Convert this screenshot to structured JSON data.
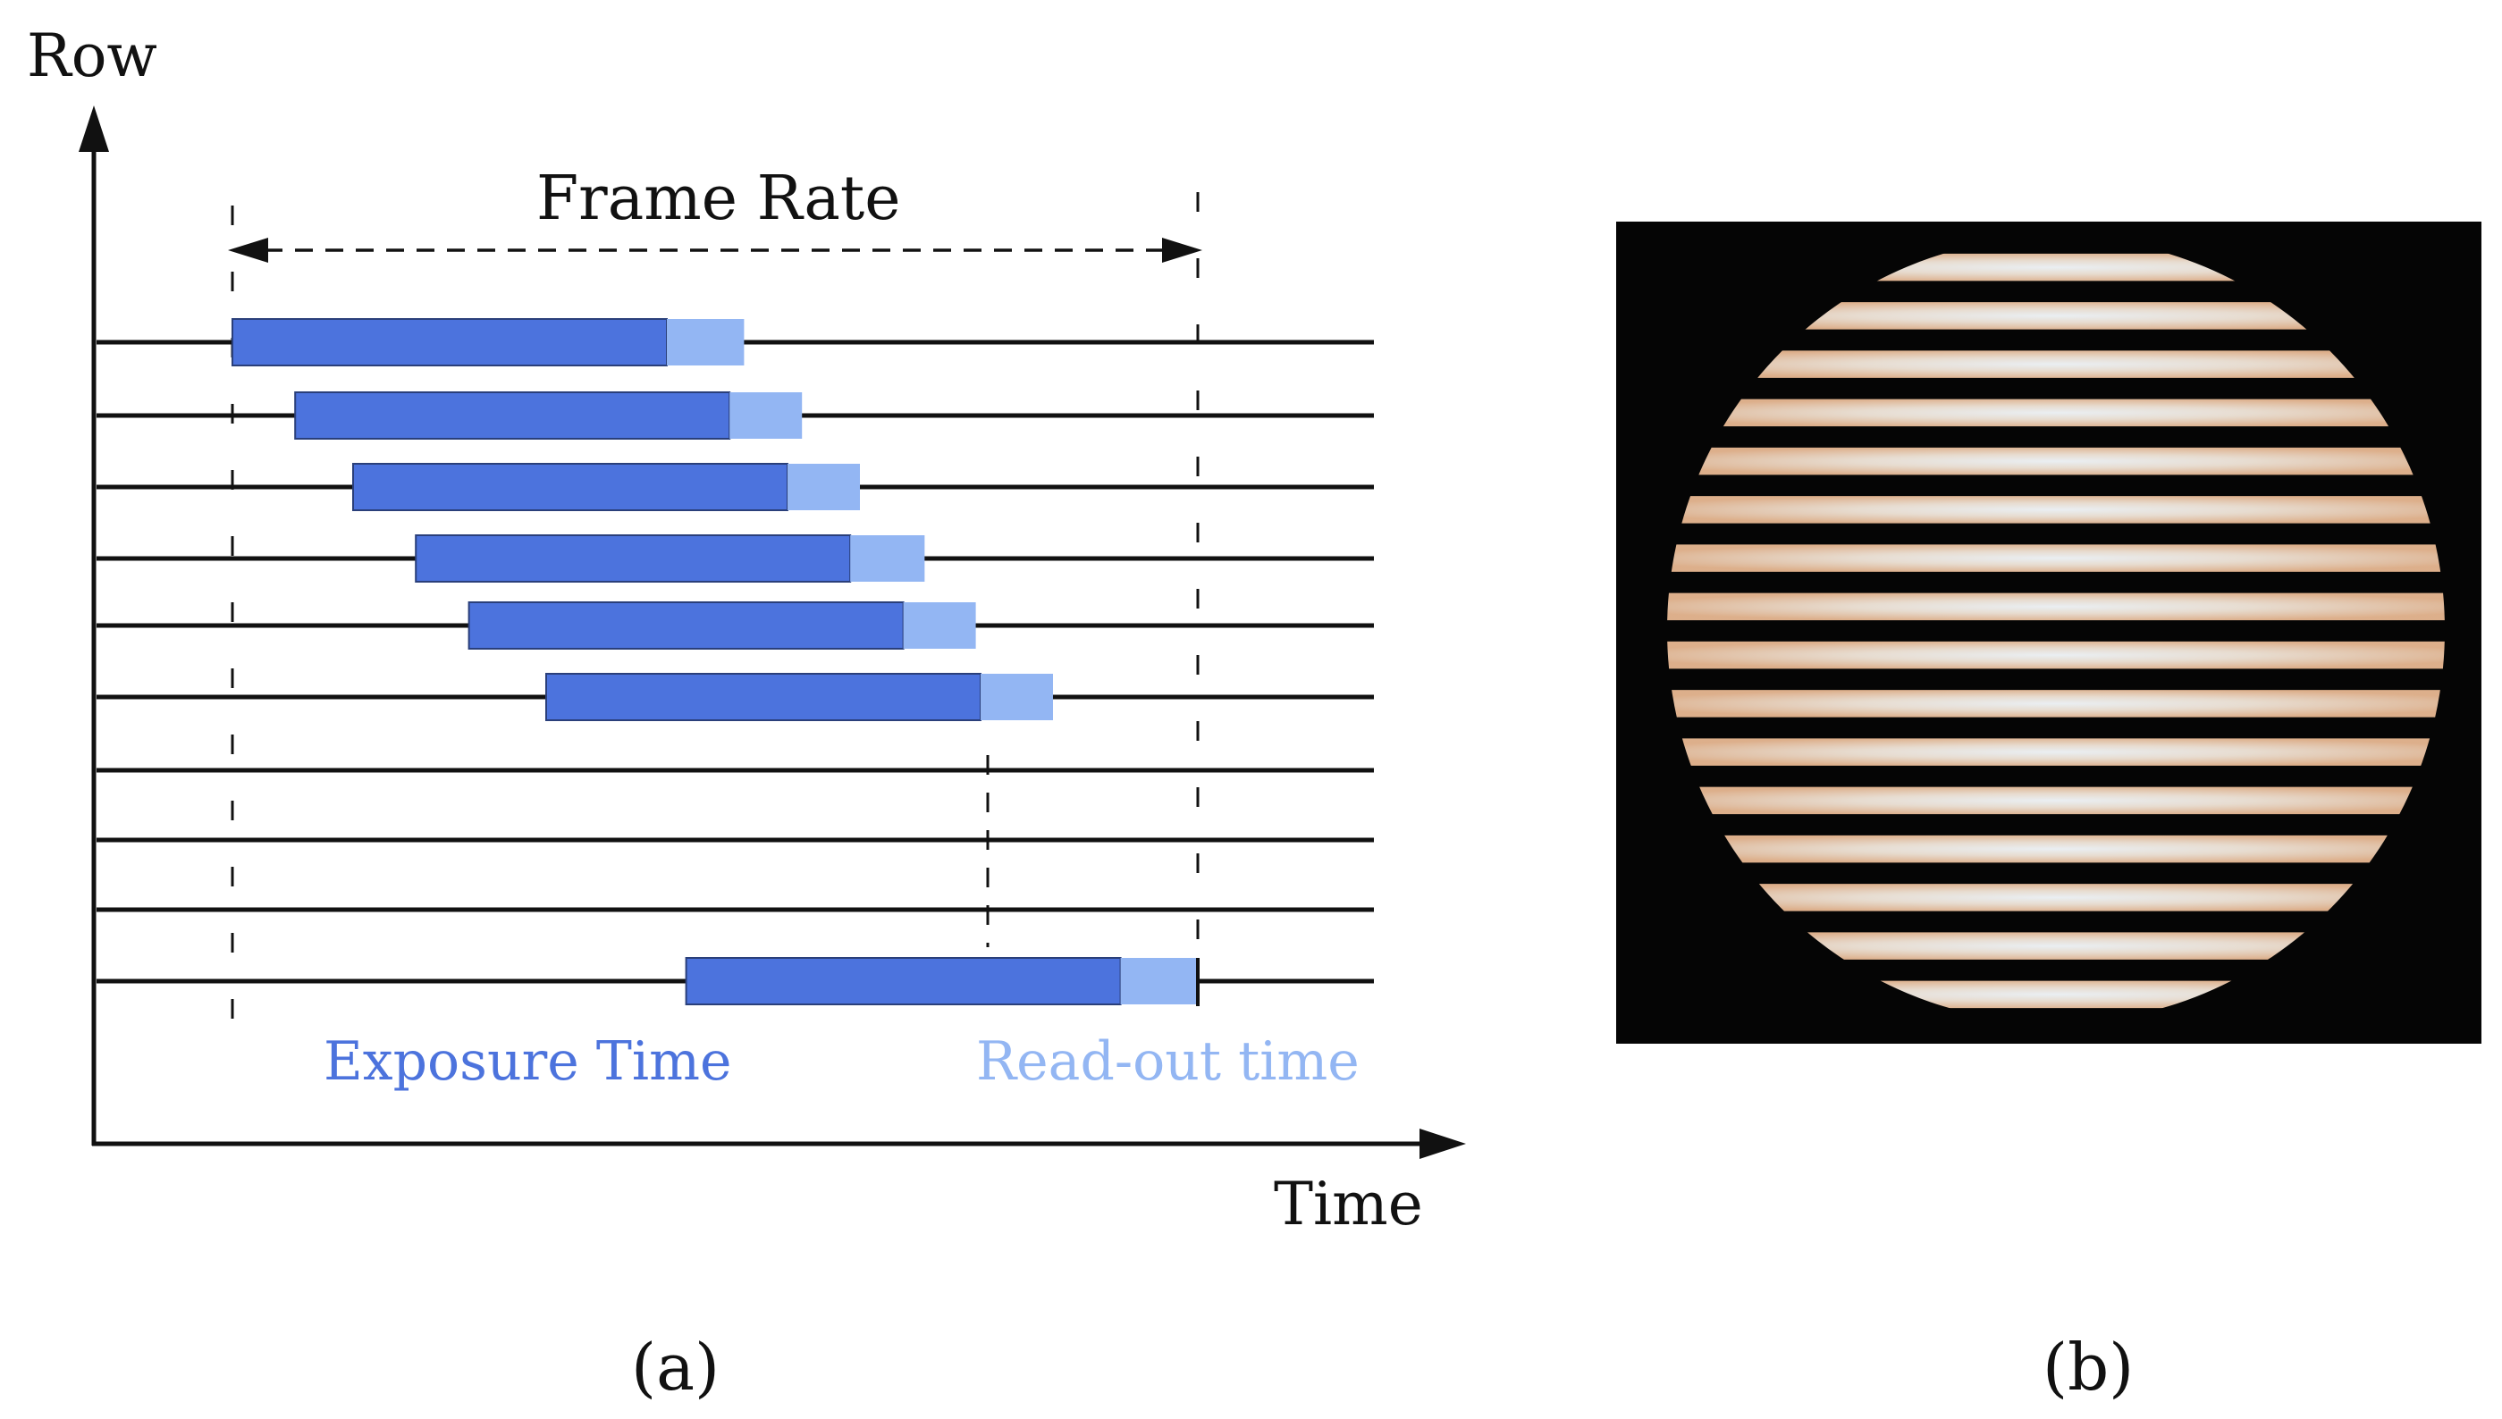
{
  "panel_a": {
    "y_axis_label": "Row",
    "x_axis_label": "Time",
    "frame_rate_label": "Frame Rate",
    "exposure_label": "Exposure Time",
    "readout_label": "Read-out time",
    "caption": "(a)",
    "rows": [
      {
        "exposure_start": 0.0,
        "exposure_end": 0.45,
        "readout_end": 0.53
      },
      {
        "exposure_start": 0.065,
        "exposure_end": 0.515,
        "readout_end": 0.59
      },
      {
        "exposure_start": 0.125,
        "exposure_end": 0.575,
        "readout_end": 0.65
      },
      {
        "exposure_start": 0.19,
        "exposure_end": 0.64,
        "readout_end": 0.717
      },
      {
        "exposure_start": 0.245,
        "exposure_end": 0.695,
        "readout_end": 0.77
      },
      {
        "exposure_start": 0.325,
        "exposure_end": 0.775,
        "readout_end": 0.85
      },
      null,
      null,
      null,
      {
        "exposure_start": 0.47,
        "exposure_end": 0.92,
        "readout_end": 1.0
      }
    ],
    "colors": {
      "exposure": "#4c73dd",
      "readout": "#93b6f3",
      "lines": "#111111"
    }
  },
  "panel_b": {
    "caption": "(b)",
    "stripe_count": 16,
    "colors": {
      "background": "#050505",
      "stripe_warm": "#f0c8a8",
      "stripe_bright": "#f4f8ff"
    }
  }
}
